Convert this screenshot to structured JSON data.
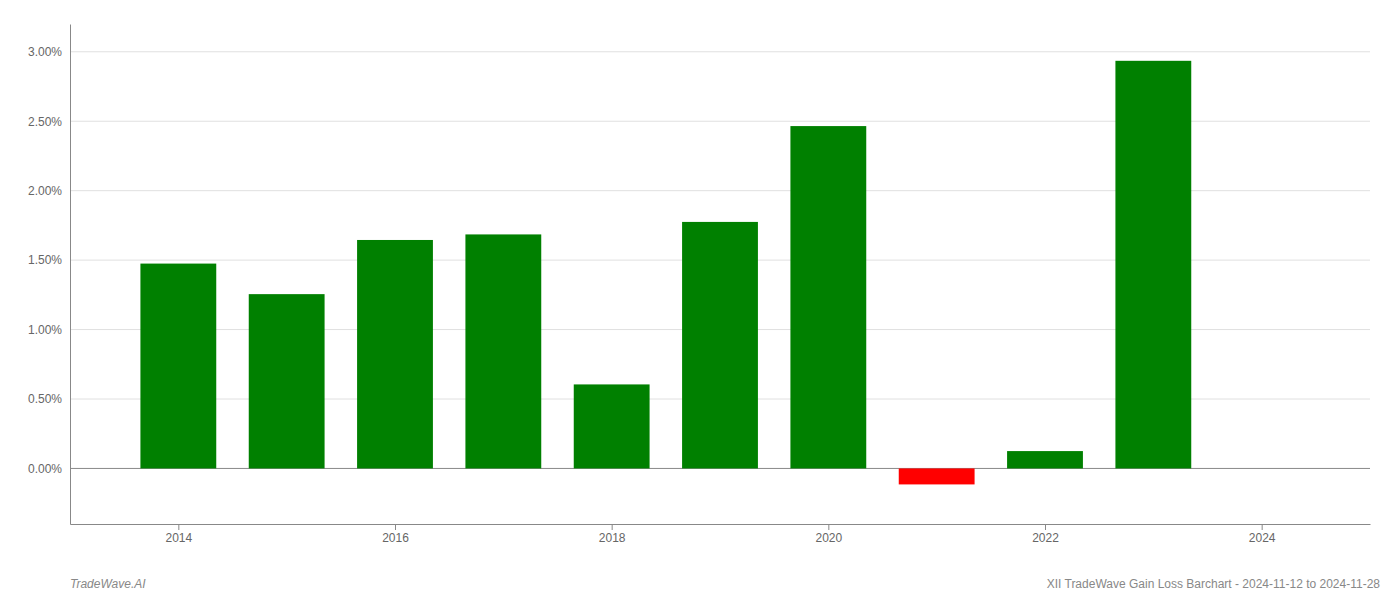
{
  "chart_data": {
    "type": "bar",
    "x": [
      2014,
      2015,
      2016,
      2017,
      2018,
      2019,
      2020,
      2021,
      2022,
      2023
    ],
    "values": [
      0.01475,
      0.01255,
      0.01645,
      0.01685,
      0.00605,
      0.01775,
      0.02465,
      -0.00115,
      0.00125,
      0.02935
    ],
    "colors": [
      "#008000",
      "#008000",
      "#008000",
      "#008000",
      "#008000",
      "#008000",
      "#008000",
      "#ff0000",
      "#008000",
      "#008000"
    ],
    "xlim": [
      2013.0,
      2025.0
    ],
    "xticks": [
      2014,
      2016,
      2018,
      2020,
      2022,
      2024
    ],
    "ylim": [
      -0.004,
      0.032
    ],
    "yticks": [
      {
        "value": 0.0,
        "label": "0.00%"
      },
      {
        "value": 0.005,
        "label": "0.50%"
      },
      {
        "value": 0.01,
        "label": "1.00%"
      },
      {
        "value": 0.015,
        "label": "1.50%"
      },
      {
        "value": 0.02,
        "label": "2.00%"
      },
      {
        "value": 0.025,
        "label": "2.50%"
      },
      {
        "value": 0.03,
        "label": "3.00%"
      }
    ],
    "grid": true,
    "annotations": [
      "TradeWave.AI",
      "XII TradeWave Gain Loss Barchart - 2024-11-12 to 2024-11-28"
    ]
  }
}
